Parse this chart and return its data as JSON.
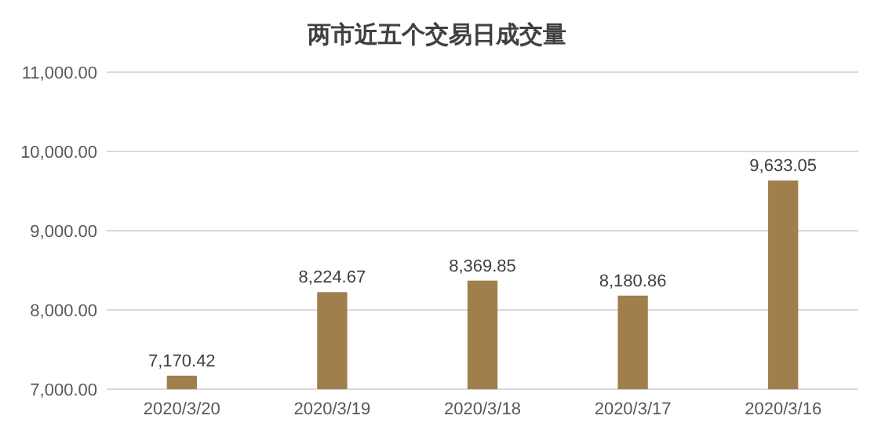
{
  "chart_data": {
    "type": "bar",
    "title": "两市近五个交易日成交量",
    "categories": [
      "2020/3/20",
      "2020/3/19",
      "2020/3/18",
      "2020/3/17",
      "2020/3/16"
    ],
    "values": [
      7170.42,
      8224.67,
      8369.85,
      8180.86,
      9633.05
    ],
    "value_labels": [
      "7,170.42",
      "8,224.67",
      "8,369.85",
      "8,180.86",
      "9,633.05"
    ],
    "color": "#a07f4c",
    "ylim": [
      7000,
      11000
    ],
    "yticks": [
      {
        "value": 7000,
        "label": "7,000.00"
      },
      {
        "value": 8000,
        "label": "8,000.00"
      },
      {
        "value": 9000,
        "label": "9,000.00"
      },
      {
        "value": 10000,
        "label": "10,000.00"
      },
      {
        "value": 11000,
        "label": "11,000.00"
      }
    ],
    "grid": true
  }
}
